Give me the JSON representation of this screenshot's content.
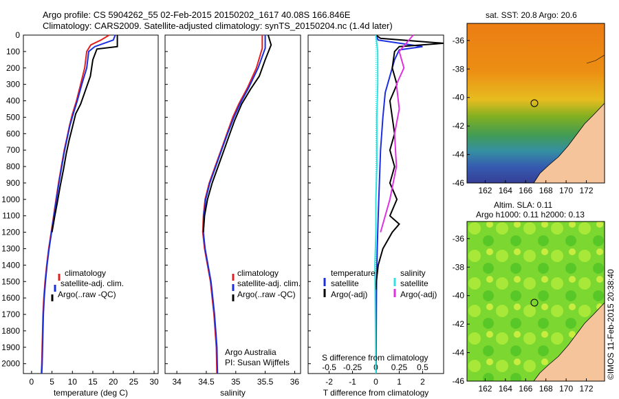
{
  "header": {
    "line1": "Argo profile: CS 5904262_55 02-Feb-2015 20150202_1617 40.08S 166.846E",
    "line2": "Climatology: CARS2009. Satellite-adjusted climatology: synTS_20150204.nc (1.4d later)"
  },
  "colors": {
    "climatology": "#e02020",
    "satellite": "#1a2ee0",
    "argo": "#000000",
    "sat_diff": "#1a2ee0",
    "argo_diff": "#000000",
    "sal_sat": "#30e0e0",
    "sal_argo": "#e030e0"
  },
  "chart_data": [
    {
      "type": "line",
      "xlabel": "temperature (deg C)",
      "ylabel": "",
      "xticks": [
        "0",
        "5",
        "10",
        "15",
        "20",
        "25",
        "30"
      ],
      "yticks": [
        "0",
        "100",
        "200",
        "300",
        "400",
        "500",
        "600",
        "700",
        "800",
        "900",
        "1000",
        "1100",
        "1200",
        "1300",
        "1400",
        "1500",
        "1600",
        "1700",
        "1800",
        "1900",
        "2000"
      ],
      "xlim": [
        -2,
        31
      ],
      "ylim": [
        2060,
        0
      ],
      "legend": [
        "climatology",
        "satellite-adj. clim.",
        "Argo(..raw -QC)"
      ],
      "series": [
        {
          "name": "climatology",
          "points": [
            [
              19,
              0
            ],
            [
              17,
              30
            ],
            [
              14.5,
              60
            ],
            [
              13.5,
              100
            ],
            [
              13,
              200
            ],
            [
              12,
              300
            ],
            [
              11,
              400
            ],
            [
              10,
              480
            ],
            [
              9.3,
              550
            ],
            [
              8.7,
              620
            ],
            [
              8,
              700
            ],
            [
              7.3,
              800
            ],
            [
              6.6,
              900
            ],
            [
              6,
              1000
            ],
            [
              5.4,
              1100
            ],
            [
              4.8,
              1200
            ],
            [
              4.2,
              1300
            ],
            [
              3.7,
              1400
            ],
            [
              3.3,
              1500
            ],
            [
              3.0,
              1600
            ],
            [
              2.8,
              1700
            ],
            [
              2.7,
              1800
            ],
            [
              2.6,
              1900
            ],
            [
              2.5,
              2000
            ],
            [
              2.4,
              2060
            ]
          ]
        },
        {
          "name": "satellite-adj. clim.",
          "points": [
            [
              20.5,
              0
            ],
            [
              20,
              30
            ],
            [
              15.5,
              70
            ],
            [
              14,
              100
            ],
            [
              13.5,
              200
            ],
            [
              12.3,
              300
            ],
            [
              11.2,
              400
            ],
            [
              10.2,
              480
            ],
            [
              9.4,
              550
            ],
            [
              8.8,
              620
            ],
            [
              8.1,
              700
            ],
            [
              7.4,
              800
            ],
            [
              6.7,
              900
            ],
            [
              6.1,
              1000
            ],
            [
              5.5,
              1100
            ],
            [
              4.9,
              1200
            ],
            [
              4.3,
              1300
            ],
            [
              3.8,
              1400
            ],
            [
              3.4,
              1500
            ],
            [
              3.1,
              1600
            ],
            [
              2.9,
              1700
            ],
            [
              2.8,
              1800
            ],
            [
              2.7,
              1900
            ],
            [
              2.6,
              2000
            ],
            [
              2.5,
              2060
            ]
          ]
        },
        {
          "name": "Argo(..raw -QC)",
          "points": [
            [
              21,
              0
            ],
            [
              21,
              70
            ],
            [
              16,
              85
            ],
            [
              15,
              150
            ],
            [
              14.4,
              250
            ],
            [
              13,
              350
            ],
            [
              12,
              420
            ],
            [
              10.8,
              480
            ],
            [
              10,
              560
            ],
            [
              9.2,
              640
            ],
            [
              8.5,
              720
            ],
            [
              7.8,
              820
            ],
            [
              7.0,
              920
            ],
            [
              6.3,
              1020
            ],
            [
              5.7,
              1100
            ],
            [
              5.0,
              1200
            ]
          ]
        }
      ]
    },
    {
      "type": "line",
      "xlabel": "salinity",
      "xticks": [
        "34",
        "34.5",
        "35",
        "35.5",
        "36"
      ],
      "xlim": [
        33.8,
        36.1
      ],
      "ylim": [
        2060,
        0
      ],
      "legend": [
        "climatology",
        "satellite-adj. clim.",
        "Argo(..raw -QC)"
      ],
      "annotation": [
        "Argo Australia",
        "PI: Susan Wijffels"
      ],
      "series": [
        {
          "name": "climatology",
          "points": [
            [
              35.45,
              0
            ],
            [
              35.45,
              80
            ],
            [
              35.35,
              200
            ],
            [
              35.2,
              320
            ],
            [
              35.05,
              420
            ],
            [
              34.95,
              500
            ],
            [
              34.85,
              600
            ],
            [
              34.75,
              700
            ],
            [
              34.65,
              800
            ],
            [
              34.55,
              900
            ],
            [
              34.48,
              1000
            ],
            [
              34.45,
              1100
            ],
            [
              34.44,
              1200
            ],
            [
              34.47,
              1300
            ],
            [
              34.52,
              1400
            ],
            [
              34.57,
              1500
            ],
            [
              34.6,
              1600
            ],
            [
              34.63,
              1700
            ],
            [
              34.65,
              1800
            ],
            [
              34.67,
              1900
            ],
            [
              34.68,
              2060
            ]
          ]
        },
        {
          "name": "satellite-adj. clim.",
          "points": [
            [
              35.5,
              0
            ],
            [
              35.5,
              80
            ],
            [
              35.38,
              200
            ],
            [
              35.22,
              320
            ],
            [
              35.07,
              420
            ],
            [
              34.97,
              500
            ],
            [
              34.86,
              600
            ],
            [
              34.76,
              700
            ],
            [
              34.66,
              800
            ],
            [
              34.56,
              900
            ],
            [
              34.49,
              1000
            ],
            [
              34.46,
              1100
            ],
            [
              34.45,
              1200
            ],
            [
              34.48,
              1300
            ],
            [
              34.53,
              1400
            ],
            [
              34.58,
              1500
            ],
            [
              34.61,
              1600
            ],
            [
              34.64,
              1700
            ],
            [
              34.66,
              1800
            ],
            [
              34.68,
              1900
            ],
            [
              34.69,
              2060
            ]
          ]
        },
        {
          "name": "Argo(..raw -QC)",
          "points": [
            [
              35.55,
              0
            ],
            [
              35.6,
              60
            ],
            [
              35.5,
              150
            ],
            [
              35.4,
              250
            ],
            [
              35.25,
              330
            ],
            [
              35.1,
              420
            ],
            [
              34.98,
              520
            ],
            [
              34.9,
              600
            ],
            [
              34.8,
              700
            ],
            [
              34.7,
              800
            ],
            [
              34.6,
              900
            ],
            [
              34.52,
              1000
            ],
            [
              34.47,
              1100
            ],
            [
              34.45,
              1200
            ]
          ]
        }
      ]
    },
    {
      "type": "line",
      "xlabel": "T difference from climatology",
      "xlabel2": "S difference from climatology",
      "xticks": [
        "-2",
        "-1",
        "0",
        "1",
        "2"
      ],
      "xticks2": [
        "-0.5",
        "-0.25",
        "0",
        "0.25",
        "0.5"
      ],
      "xlim": [
        -2.9,
        2.9
      ],
      "ylim": [
        2060,
        0
      ],
      "legend_temperature": [
        "temperature",
        "satellite",
        "Argo(-adj)"
      ],
      "legend_salinity": [
        "salinity",
        "satellite",
        "Argo(-adj)"
      ],
      "series": [
        {
          "name": "satellite",
          "points": [
            [
              0,
              0
            ],
            [
              0.1,
              30
            ],
            [
              2,
              70
            ],
            [
              1,
              90
            ],
            [
              0.8,
              150
            ],
            [
              0.6,
              250
            ],
            [
              0.4,
              350
            ],
            [
              0.3,
              500
            ],
            [
              0.2,
              700
            ],
            [
              0.15,
              900
            ],
            [
              0.1,
              1100
            ],
            [
              0.06,
              1300
            ],
            [
              0.03,
              1500
            ],
            [
              0.02,
              1700
            ],
            [
              0.01,
              2060
            ]
          ]
        },
        {
          "name": "Argo(-adj)",
          "points": [
            [
              0,
              0
            ],
            [
              0.2,
              20
            ],
            [
              2.9,
              50
            ],
            [
              1,
              70
            ],
            [
              0.8,
              100
            ],
            [
              0.7,
              200
            ],
            [
              0.9,
              300
            ],
            [
              0.6,
              400
            ],
            [
              0.7,
              500
            ],
            [
              0.8,
              600
            ],
            [
              0.6,
              700
            ],
            [
              0.8,
              800
            ],
            [
              0.6,
              900
            ],
            [
              0.9,
              1000
            ],
            [
              0.6,
              1100
            ],
            [
              1.0,
              1150
            ],
            [
              0.7,
              1200
            ],
            [
              0.3,
              1300
            ],
            [
              0.1,
              1400
            ],
            [
              0.02,
              1500
            ],
            [
              0,
              1550
            ]
          ]
        },
        {
          "name": "satellite (salinity)",
          "points": [
            [
              0,
              0
            ],
            [
              0.02,
              100
            ],
            [
              0.02,
              300
            ],
            [
              0.01,
              500
            ],
            [
              0.01,
              800
            ],
            [
              0.0,
              1000
            ],
            [
              0.0,
              1200
            ],
            [
              -0.01,
              1400
            ],
            [
              0,
              2060
            ]
          ]
        },
        {
          "name": "Argo(-adj) (salinity)",
          "points": [
            [
              0.4,
              0
            ],
            [
              0.25,
              100
            ],
            [
              0.3,
              200
            ],
            [
              0.22,
              300
            ],
            [
              0.25,
              450
            ],
            [
              0.2,
              600
            ],
            [
              0.22,
              800
            ],
            [
              0.15,
              1000
            ],
            [
              0.1,
              1100
            ],
            [
              0.05,
              1200
            ]
          ]
        }
      ]
    }
  ],
  "map_sst": {
    "title": "sat. SST: 20.8 Argo: 20.6",
    "yticks": [
      "-36",
      "-38",
      "-40",
      "-42",
      "-44",
      "-46"
    ],
    "xticks": [
      "162",
      "164",
      "166",
      "168",
      "170",
      "172"
    ]
  },
  "map_sla": {
    "title1": "Altim. SLA: 0.11",
    "title2": "Argo h1000: 0.11 h2000: 0.13",
    "yticks": [
      "-36",
      "-38",
      "-40",
      "-42",
      "-44",
      "-46"
    ],
    "xticks": [
      "162",
      "164",
      "166",
      "168",
      "170",
      "172"
    ]
  },
  "credit": "©IMOS 11-Feb-2015 20:38:40"
}
